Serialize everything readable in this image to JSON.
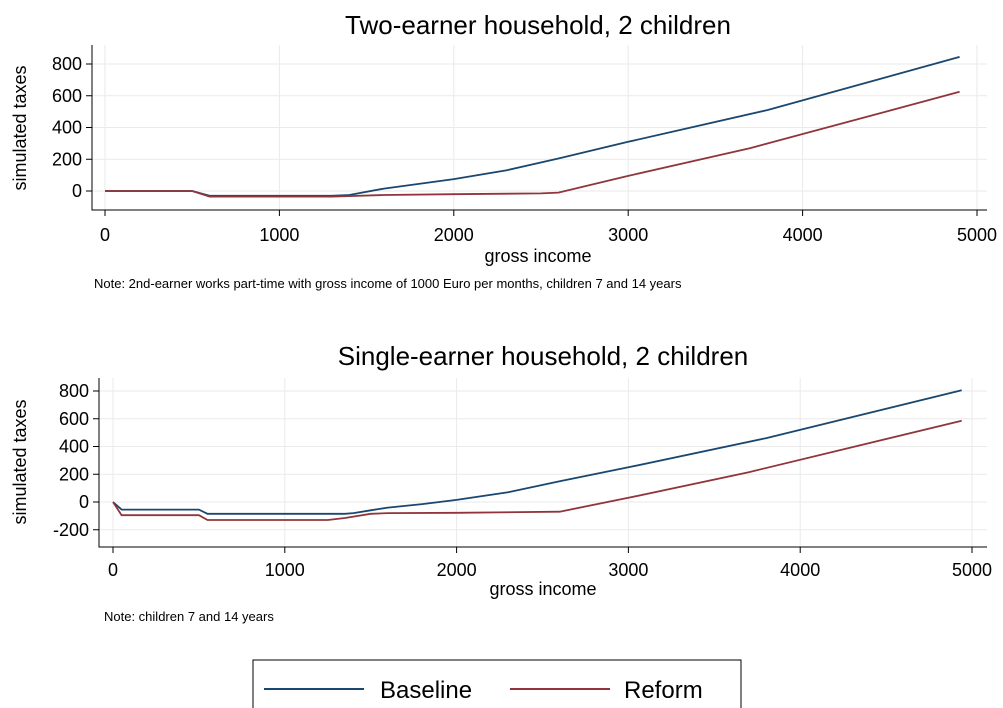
{
  "colors": {
    "baseline": "#1a476f",
    "reform": "#90353b"
  },
  "legend": {
    "baseline": "Baseline",
    "reform": "Reform"
  },
  "chart_data": [
    {
      "type": "line",
      "title": "Two-earner household, 2 children",
      "xlabel": "gross income",
      "ylabel": "simulated taxes",
      "note": "Note: 2nd-earner works part-time with gross income of 1000 Euro per months, children 7 and 14 years",
      "xlim": [
        0,
        5000
      ],
      "ylim": [
        -60,
        900
      ],
      "xticks": [
        0,
        1000,
        2000,
        3000,
        4000,
        5000
      ],
      "yticks": [
        0,
        200,
        400,
        600,
        800
      ],
      "grid": true,
      "legend_position": "bottom",
      "series": [
        {
          "name": "Baseline",
          "x": [
            0,
            500,
            600,
            1300,
            1400,
            1600,
            1800,
            2000,
            2300,
            2600,
            3000,
            3800,
            4900
          ],
          "y": [
            0,
            0,
            -30,
            -30,
            -25,
            15,
            45,
            75,
            130,
            205,
            310,
            510,
            845
          ]
        },
        {
          "name": "Reform",
          "x": [
            0,
            500,
            600,
            1300,
            1600,
            2000,
            2500,
            2600,
            3000,
            3700,
            4900
          ],
          "y": [
            0,
            0,
            -35,
            -35,
            -25,
            -20,
            -15,
            -10,
            95,
            270,
            625
          ]
        }
      ]
    },
    {
      "type": "line",
      "title": "Single-earner household, 2 children",
      "xlabel": "gross income",
      "ylabel": "simulated taxes",
      "note": "Note: children 7 and 14 years",
      "xlim": [
        0,
        5000
      ],
      "ylim": [
        -280,
        900
      ],
      "xticks": [
        0,
        1000,
        2000,
        3000,
        4000,
        5000
      ],
      "yticks": [
        -200,
        0,
        200,
        400,
        600,
        800
      ],
      "grid": true,
      "legend_position": "bottom",
      "series": [
        {
          "name": "Baseline",
          "x": [
            0,
            50,
            500,
            550,
            1350,
            1400,
            1500,
            1600,
            1800,
            2000,
            2300,
            2600,
            3000,
            3800,
            4940
          ],
          "y": [
            0,
            -55,
            -55,
            -85,
            -85,
            -80,
            -60,
            -40,
            -15,
            15,
            70,
            150,
            250,
            460,
            805
          ]
        },
        {
          "name": "Reform",
          "x": [
            0,
            50,
            500,
            550,
            1250,
            1350,
            1500,
            1600,
            2000,
            2600,
            3000,
            3700,
            4940
          ],
          "y": [
            0,
            -95,
            -95,
            -130,
            -130,
            -115,
            -85,
            -80,
            -78,
            -70,
            30,
            215,
            585
          ]
        }
      ]
    }
  ]
}
